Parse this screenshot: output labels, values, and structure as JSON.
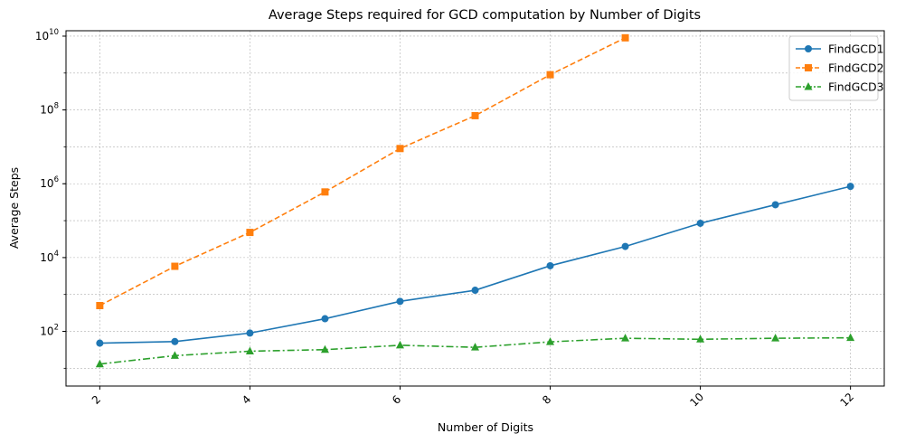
{
  "chart_data": {
    "type": "line",
    "title": "Average Steps required for GCD computation by Number of Digits",
    "xlabel": "Number of Digits",
    "ylabel": "Average Steps",
    "xlim": [
      1.55,
      12.45
    ],
    "ylim": [
      3.3,
      14000000000
    ],
    "yscale": "log",
    "grid": true,
    "legend": "top-right",
    "x_ticks": [
      2,
      4,
      6,
      8,
      10,
      12
    ],
    "x_tick_labels": [
      "2",
      "4",
      "6",
      "8",
      "10",
      "12"
    ],
    "y_ticks": [
      100,
      10000,
      1000000,
      100000000,
      10000000000
    ],
    "y_tick_labels": [
      {
        "base": "10",
        "exp": "2"
      },
      {
        "base": "10",
        "exp": "4"
      },
      {
        "base": "10",
        "exp": "6"
      },
      {
        "base": "10",
        "exp": "8"
      },
      {
        "base": "10",
        "exp": "10"
      }
    ],
    "series": [
      {
        "name": "FindGCD1",
        "color": "#1f77b4",
        "marker": "circle",
        "dash": "solid",
        "x": [
          2,
          3,
          4,
          5,
          6,
          7,
          8,
          9,
          10,
          11,
          12
        ],
        "values": [
          48,
          53,
          90,
          220,
          650,
          1300,
          6000,
          20000,
          85000,
          270000,
          850000
        ]
      },
      {
        "name": "FindGCD2",
        "color": "#ff7f0e",
        "marker": "square",
        "dash": "dashed",
        "x": [
          2,
          3,
          4,
          5,
          6,
          7,
          8,
          9
        ],
        "values": [
          500,
          5800,
          48000,
          600000,
          9000000,
          70000000,
          900000000,
          9000000000
        ]
      },
      {
        "name": "FindGCD3",
        "color": "#2ca02c",
        "marker": "triangle",
        "dash": "dashdot",
        "x": [
          2,
          3,
          4,
          5,
          6,
          7,
          8,
          9,
          10,
          11,
          12
        ],
        "values": [
          13,
          22,
          29,
          32,
          42,
          37,
          52,
          65,
          61,
          65,
          67
        ]
      }
    ]
  }
}
